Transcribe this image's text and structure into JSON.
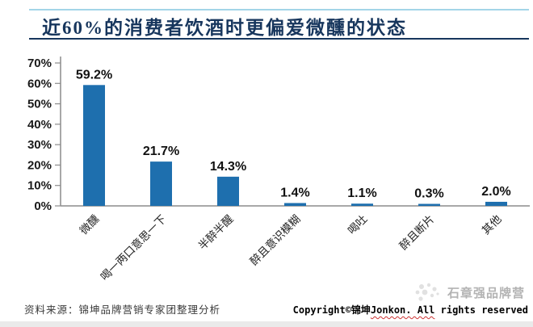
{
  "page": {
    "title": "近60%的消费者饮酒时更偏爱微醺的状态"
  },
  "chart_data": {
    "type": "bar",
    "title": "近60%的消费者饮酒时更偏爱微醺的状态",
    "categories": [
      "微醺",
      "喝一两口意思一下",
      "半醉半醒",
      "醉且意识模糊",
      "喝吐",
      "醉且断片",
      "其他"
    ],
    "values": [
      59.2,
      21.7,
      14.3,
      1.4,
      1.1,
      0.3,
      2.0
    ],
    "value_labels": [
      "59.2%",
      "21.7%",
      "14.3%",
      "1.4%",
      "1.1%",
      "0.3%",
      "2.0%"
    ],
    "y_tick_labels": [
      "0%",
      "10%",
      "20%",
      "30%",
      "40%",
      "50%",
      "60%",
      "70%"
    ],
    "ylim": [
      0,
      70
    ],
    "xlabel": "",
    "ylabel": "",
    "grid": false,
    "legend": false,
    "category_rotation_deg": 45,
    "bar_color": "#1E6FAE",
    "axis_color": "#8C8C8C"
  },
  "footer": {
    "source": "资料来源：锦坤品牌营销专家团整理分析",
    "copyright_prefix": "Copyright©锦坤",
    "copyright_underlined": "Jonkon. All",
    "copyright_suffix": " rights reserved",
    "watermark": "石章强品牌营"
  }
}
